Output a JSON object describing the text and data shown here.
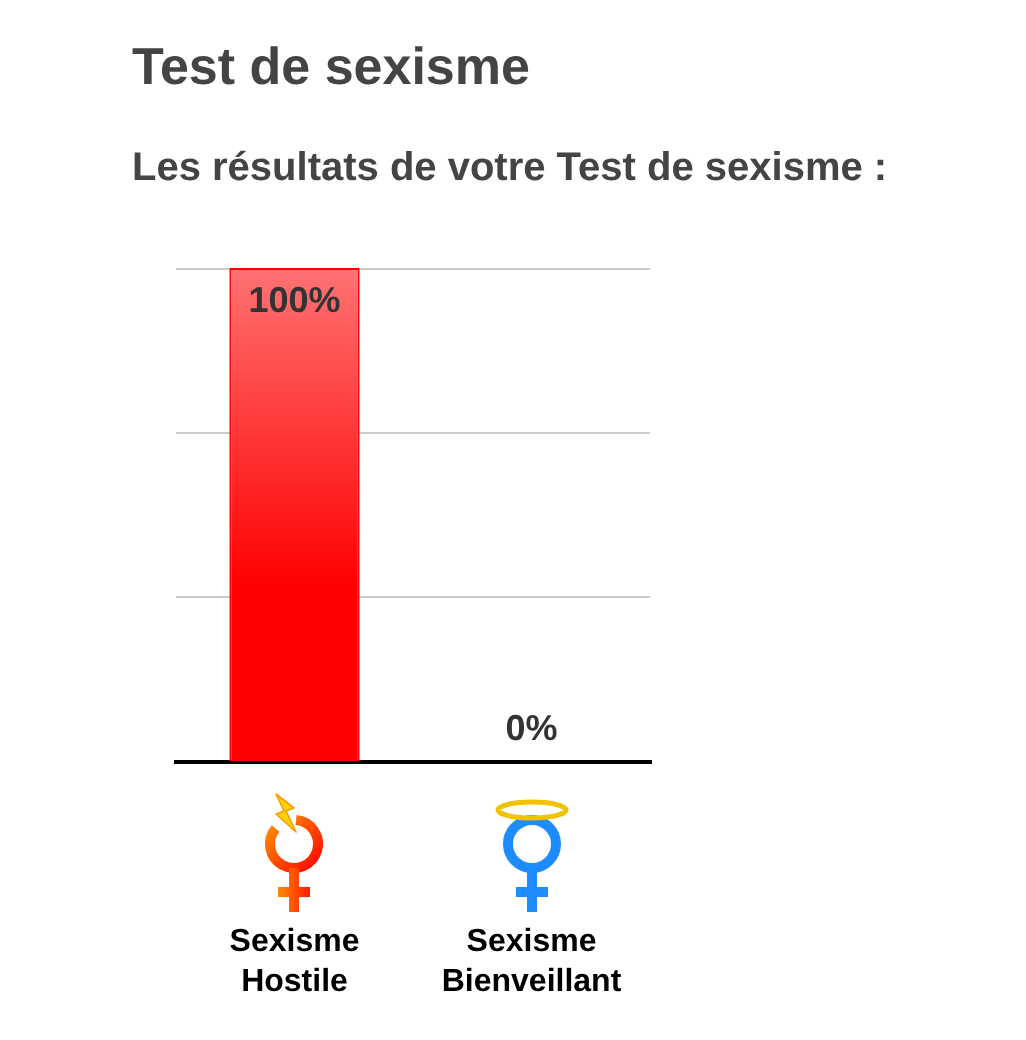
{
  "chart_data": {
    "type": "bar",
    "title": "Test de sexisme",
    "subtitle": "Les résultats de votre Test de sexisme :",
    "categories": [
      "Sexisme Hostile",
      "Sexisme Bienveillant"
    ],
    "values": [
      100,
      0
    ],
    "color": "#ff0000",
    "value_labels": [
      "100%",
      "0%"
    ],
    "ylim": [
      0,
      100
    ],
    "yticks": [
      {
        "value": 0,
        "label": null
      },
      {
        "value": 33.3,
        "label": null
      },
      {
        "value": 66.7,
        "label": null
      },
      {
        "value": 100,
        "label": null
      }
    ],
    "grid": "y",
    "tick_labels": "x"
  }
}
